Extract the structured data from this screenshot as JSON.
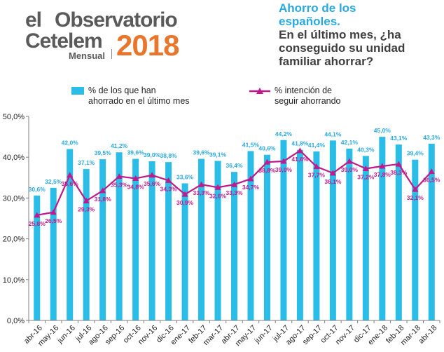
{
  "logo": {
    "word_el": "el",
    "word_observatorio": "Observatorio",
    "word_cetelem": "Cetelem",
    "word_mensual": "Mensual",
    "year": "2018"
  },
  "header": {
    "title_line1": "Ahorro de los",
    "title_line2": "españoles.",
    "question_line1": "En el último mes, ¿ha",
    "question_line2": "conseguido su unidad",
    "question_line3": "familiar ahorrar?"
  },
  "colors": {
    "bar": "#29bde8",
    "line": "#c0198c",
    "bar_label": "#29a9e0",
    "line_label": "#c0198c"
  },
  "chart_data": {
    "type": "bar",
    "categories": [
      "abr-16",
      "may-16",
      "jun-16",
      "jul-16",
      "ago-16",
      "sep-16",
      "oct-16",
      "nov-16",
      "dic-16",
      "ene-17",
      "feb-17",
      "mar-17",
      "abr-17",
      "may-17",
      "jun-17",
      "jul-17",
      "ago-17",
      "sep-17",
      "oct-17",
      "nov-17",
      "dic-17",
      "ene-18",
      "feb-18",
      "mar-18",
      "abr-18"
    ],
    "series": [
      {
        "name": "% de los que han ahorrado en el último mes",
        "type": "bar",
        "values": [
          30.6,
          32.5,
          42.0,
          37.1,
          39.5,
          41.2,
          39.6,
          39.0,
          38.8,
          33.6,
          39.6,
          39.1,
          36.4,
          41.5,
          40.6,
          44.2,
          41.8,
          41.4,
          44.1,
          42.1,
          40.3,
          45.0,
          43.1,
          39.4,
          43.3
        ],
        "labels": [
          "30,6%",
          "32,5%",
          "42,0%",
          "37,1%",
          "39,5%",
          "41,2%",
          "39,6%",
          "39,0%",
          "38,8%",
          "33,6%",
          "39,6%",
          "39,1%",
          "36,4%",
          "41,5%",
          "40,6%",
          "44,2%",
          "41,8%",
          "41,4%",
          "44,1%",
          "42,1%",
          "40,3%",
          "45,0%",
          "43,1%",
          "39,4%",
          "43,3%"
        ]
      },
      {
        "name": "% intención de seguir ahorrando",
        "type": "line",
        "values": [
          25.8,
          26.5,
          35.6,
          29.3,
          31.8,
          35.3,
          34.8,
          35.6,
          34.3,
          30.9,
          33.3,
          32.6,
          33.3,
          34.7,
          38.8,
          39.0,
          41.6,
          37.7,
          36.1,
          39.0,
          37.2,
          37.8,
          38.3,
          32.1,
          36.5
        ],
        "labels": [
          "25,8%",
          "26,5%",
          "35,6%",
          "29,3%",
          "31,8%",
          "35,3%",
          "34,8%",
          "35,6%",
          "34,3%",
          "30,9%",
          "33,3%",
          "32,6%",
          "33,3%",
          "34,7%",
          "38,8%",
          "39,0%",
          "41,6%",
          "37,7%",
          "36,1%",
          "39,0%",
          "37,2%",
          "37,8%",
          "38,3%",
          "32,1%",
          "36,5%"
        ]
      }
    ],
    "legend": {
      "bar_line1": "% de los que han",
      "bar_line2": "ahorrado en el último mes",
      "line_line1": "% intención de",
      "line_line2": "seguir ahorrando"
    },
    "y_ticks": [
      "0,0%",
      "10,0%",
      "20,0%",
      "30,0%",
      "40,0%",
      "50,0%"
    ],
    "ylim": [
      0,
      50
    ],
    "grid": false,
    "legend_placement": "top"
  }
}
